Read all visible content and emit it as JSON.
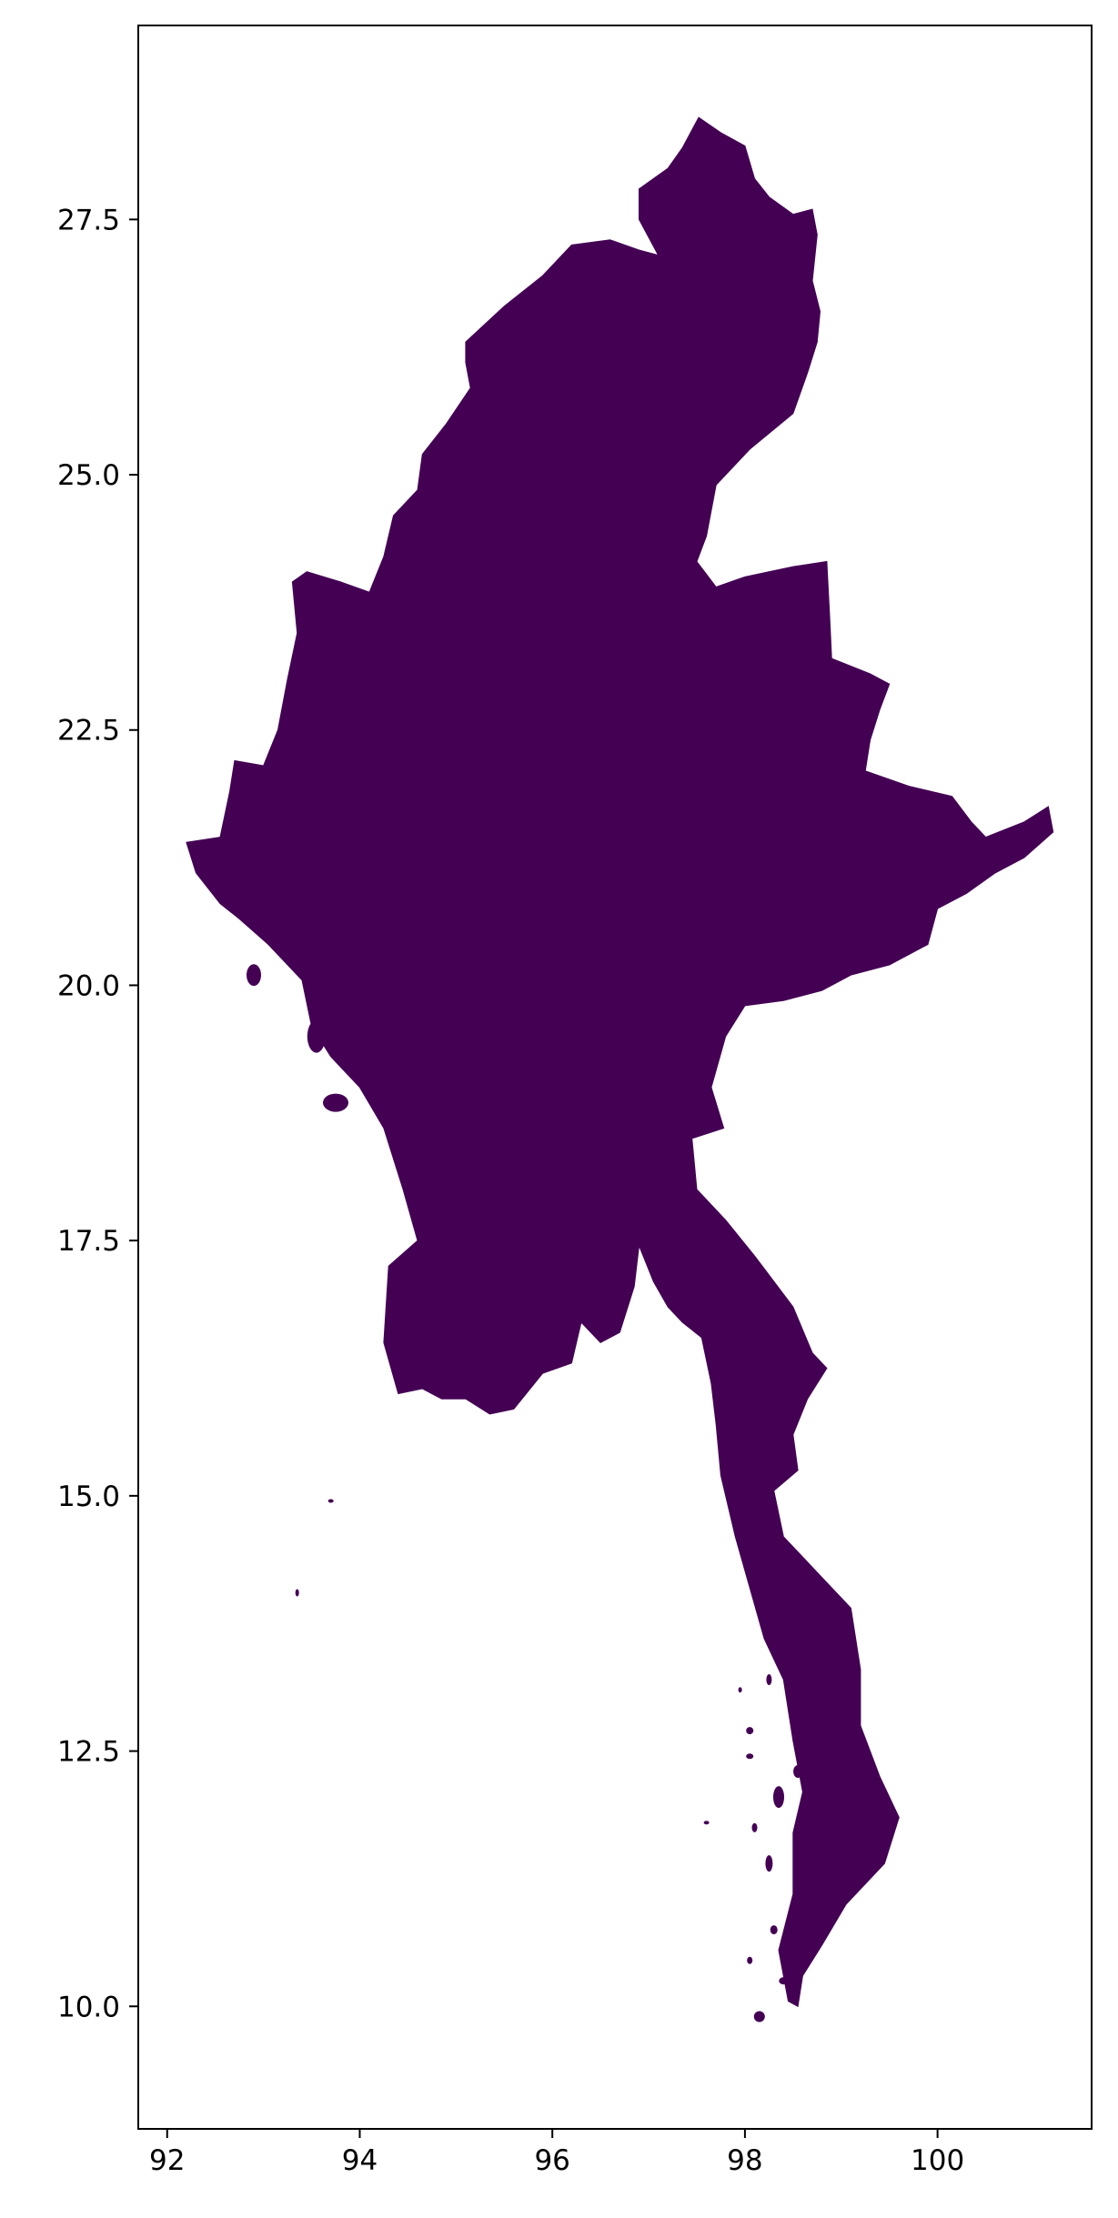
{
  "map": {
    "title": "",
    "xlabel": "",
    "ylabel": "",
    "fill_color": "#440154",
    "frame_color": "#000000",
    "background_color": "#ffffff",
    "x_ticks": [
      "92",
      "94",
      "96",
      "98",
      "100"
    ],
    "y_ticks": [
      "27.5",
      "25.0",
      "22.5",
      "20.0",
      "17.5",
      "15.0",
      "12.5",
      "10.0"
    ],
    "grid": false,
    "legend": false
  },
  "chart_data": {
    "type": "map",
    "region": "Myanmar",
    "xlim": [
      91.7,
      101.6
    ],
    "ylim": [
      8.8,
      29.4
    ],
    "x_ticks": [
      92,
      94,
      96,
      98,
      100
    ],
    "y_ticks": [
      27.5,
      25.0,
      22.5,
      20.0,
      17.5,
      15.0,
      12.5,
      10.0
    ],
    "main_outline": [
      [
        97.52,
        28.5
      ],
      [
        97.75,
        28.35
      ],
      [
        98.0,
        28.22
      ],
      [
        98.1,
        27.9
      ],
      [
        98.25,
        27.72
      ],
      [
        98.5,
        27.55
      ],
      [
        98.7,
        27.6
      ],
      [
        98.75,
        27.35
      ],
      [
        98.7,
        26.9
      ],
      [
        98.78,
        26.6
      ],
      [
        98.75,
        26.3
      ],
      [
        98.65,
        26.0
      ],
      [
        98.5,
        25.6
      ],
      [
        98.05,
        25.25
      ],
      [
        97.7,
        24.9
      ],
      [
        97.6,
        24.4
      ],
      [
        97.5,
        24.15
      ],
      [
        97.7,
        23.9
      ],
      [
        98.0,
        24.0
      ],
      [
        98.5,
        24.1
      ],
      [
        98.85,
        24.15
      ],
      [
        98.88,
        23.6
      ],
      [
        98.9,
        23.2
      ],
      [
        99.3,
        23.05
      ],
      [
        99.5,
        22.95
      ],
      [
        99.4,
        22.7
      ],
      [
        99.3,
        22.4
      ],
      [
        99.25,
        22.1
      ],
      [
        99.7,
        21.95
      ],
      [
        100.15,
        21.85
      ],
      [
        100.35,
        21.6
      ],
      [
        100.5,
        21.45
      ],
      [
        100.9,
        21.6
      ],
      [
        101.15,
        21.75
      ],
      [
        101.2,
        21.5
      ],
      [
        100.9,
        21.25
      ],
      [
        100.6,
        21.1
      ],
      [
        100.3,
        20.9
      ],
      [
        100.0,
        20.75
      ],
      [
        99.9,
        20.4
      ],
      [
        99.5,
        20.2
      ],
      [
        99.1,
        20.1
      ],
      [
        98.8,
        19.95
      ],
      [
        98.4,
        19.85
      ],
      [
        98.0,
        19.8
      ],
      [
        97.8,
        19.5
      ],
      [
        97.65,
        19.0
      ],
      [
        97.78,
        18.6
      ],
      [
        97.45,
        18.5
      ],
      [
        97.5,
        18.0
      ],
      [
        97.8,
        17.7
      ],
      [
        98.1,
        17.35
      ],
      [
        98.5,
        16.85
      ],
      [
        98.7,
        16.4
      ],
      [
        98.85,
        16.25
      ],
      [
        98.65,
        15.95
      ],
      [
        98.5,
        15.6
      ],
      [
        98.55,
        15.25
      ],
      [
        98.3,
        15.05
      ],
      [
        98.4,
        14.6
      ],
      [
        98.85,
        14.15
      ],
      [
        99.1,
        13.9
      ],
      [
        99.2,
        13.3
      ],
      [
        99.2,
        12.75
      ],
      [
        99.4,
        12.25
      ],
      [
        99.6,
        11.85
      ],
      [
        99.45,
        11.4
      ],
      [
        99.05,
        11.0
      ],
      [
        98.8,
        10.6
      ],
      [
        98.6,
        10.3
      ],
      [
        98.55,
        10.0
      ],
      [
        98.45,
        10.05
      ],
      [
        98.35,
        10.55
      ],
      [
        98.5,
        11.1
      ],
      [
        98.5,
        11.7
      ],
      [
        98.6,
        12.1
      ],
      [
        98.5,
        12.6
      ],
      [
        98.4,
        13.2
      ],
      [
        98.2,
        13.6
      ],
      [
        98.05,
        14.1
      ],
      [
        97.9,
        14.6
      ],
      [
        97.75,
        15.2
      ],
      [
        97.7,
        15.7
      ],
      [
        97.65,
        16.1
      ],
      [
        97.55,
        16.55
      ],
      [
        97.35,
        16.7
      ],
      [
        97.2,
        16.85
      ],
      [
        97.05,
        17.1
      ],
      [
        96.9,
        17.45
      ],
      [
        96.85,
        17.05
      ],
      [
        96.7,
        16.6
      ],
      [
        96.5,
        16.5
      ],
      [
        96.3,
        16.7
      ],
      [
        96.2,
        16.3
      ],
      [
        95.9,
        16.2
      ],
      [
        95.6,
        15.85
      ],
      [
        95.35,
        15.8
      ],
      [
        95.1,
        15.95
      ],
      [
        94.85,
        15.95
      ],
      [
        94.65,
        16.05
      ],
      [
        94.4,
        16.0
      ],
      [
        94.25,
        16.5
      ],
      [
        94.3,
        17.25
      ],
      [
        94.6,
        17.5
      ],
      [
        94.45,
        18.0
      ],
      [
        94.25,
        18.6
      ],
      [
        94.0,
        19.0
      ],
      [
        93.7,
        19.3
      ],
      [
        93.5,
        19.6
      ],
      [
        93.4,
        20.05
      ],
      [
        93.05,
        20.4
      ],
      [
        92.75,
        20.65
      ],
      [
        92.55,
        20.8
      ],
      [
        92.3,
        21.1
      ],
      [
        92.2,
        21.4
      ],
      [
        92.55,
        21.45
      ],
      [
        92.65,
        21.9
      ],
      [
        92.7,
        22.2
      ],
      [
        93.0,
        22.15
      ],
      [
        93.15,
        22.5
      ],
      [
        93.25,
        23.0
      ],
      [
        93.35,
        23.45
      ],
      [
        93.3,
        23.95
      ],
      [
        93.45,
        24.05
      ],
      [
        93.8,
        23.95
      ],
      [
        94.1,
        23.85
      ],
      [
        94.25,
        24.2
      ],
      [
        94.35,
        24.6
      ],
      [
        94.6,
        24.85
      ],
      [
        94.65,
        25.2
      ],
      [
        94.9,
        25.5
      ],
      [
        95.15,
        25.85
      ],
      [
        95.1,
        26.1
      ],
      [
        95.1,
        26.3
      ],
      [
        95.5,
        26.65
      ],
      [
        95.9,
        26.95
      ],
      [
        96.2,
        27.25
      ],
      [
        96.6,
        27.3
      ],
      [
        96.9,
        27.2
      ],
      [
        97.1,
        27.15
      ],
      [
        96.9,
        27.5
      ],
      [
        96.9,
        27.8
      ],
      [
        97.2,
        28.0
      ],
      [
        97.35,
        28.2
      ],
      [
        97.52,
        28.5
      ]
    ]
  }
}
